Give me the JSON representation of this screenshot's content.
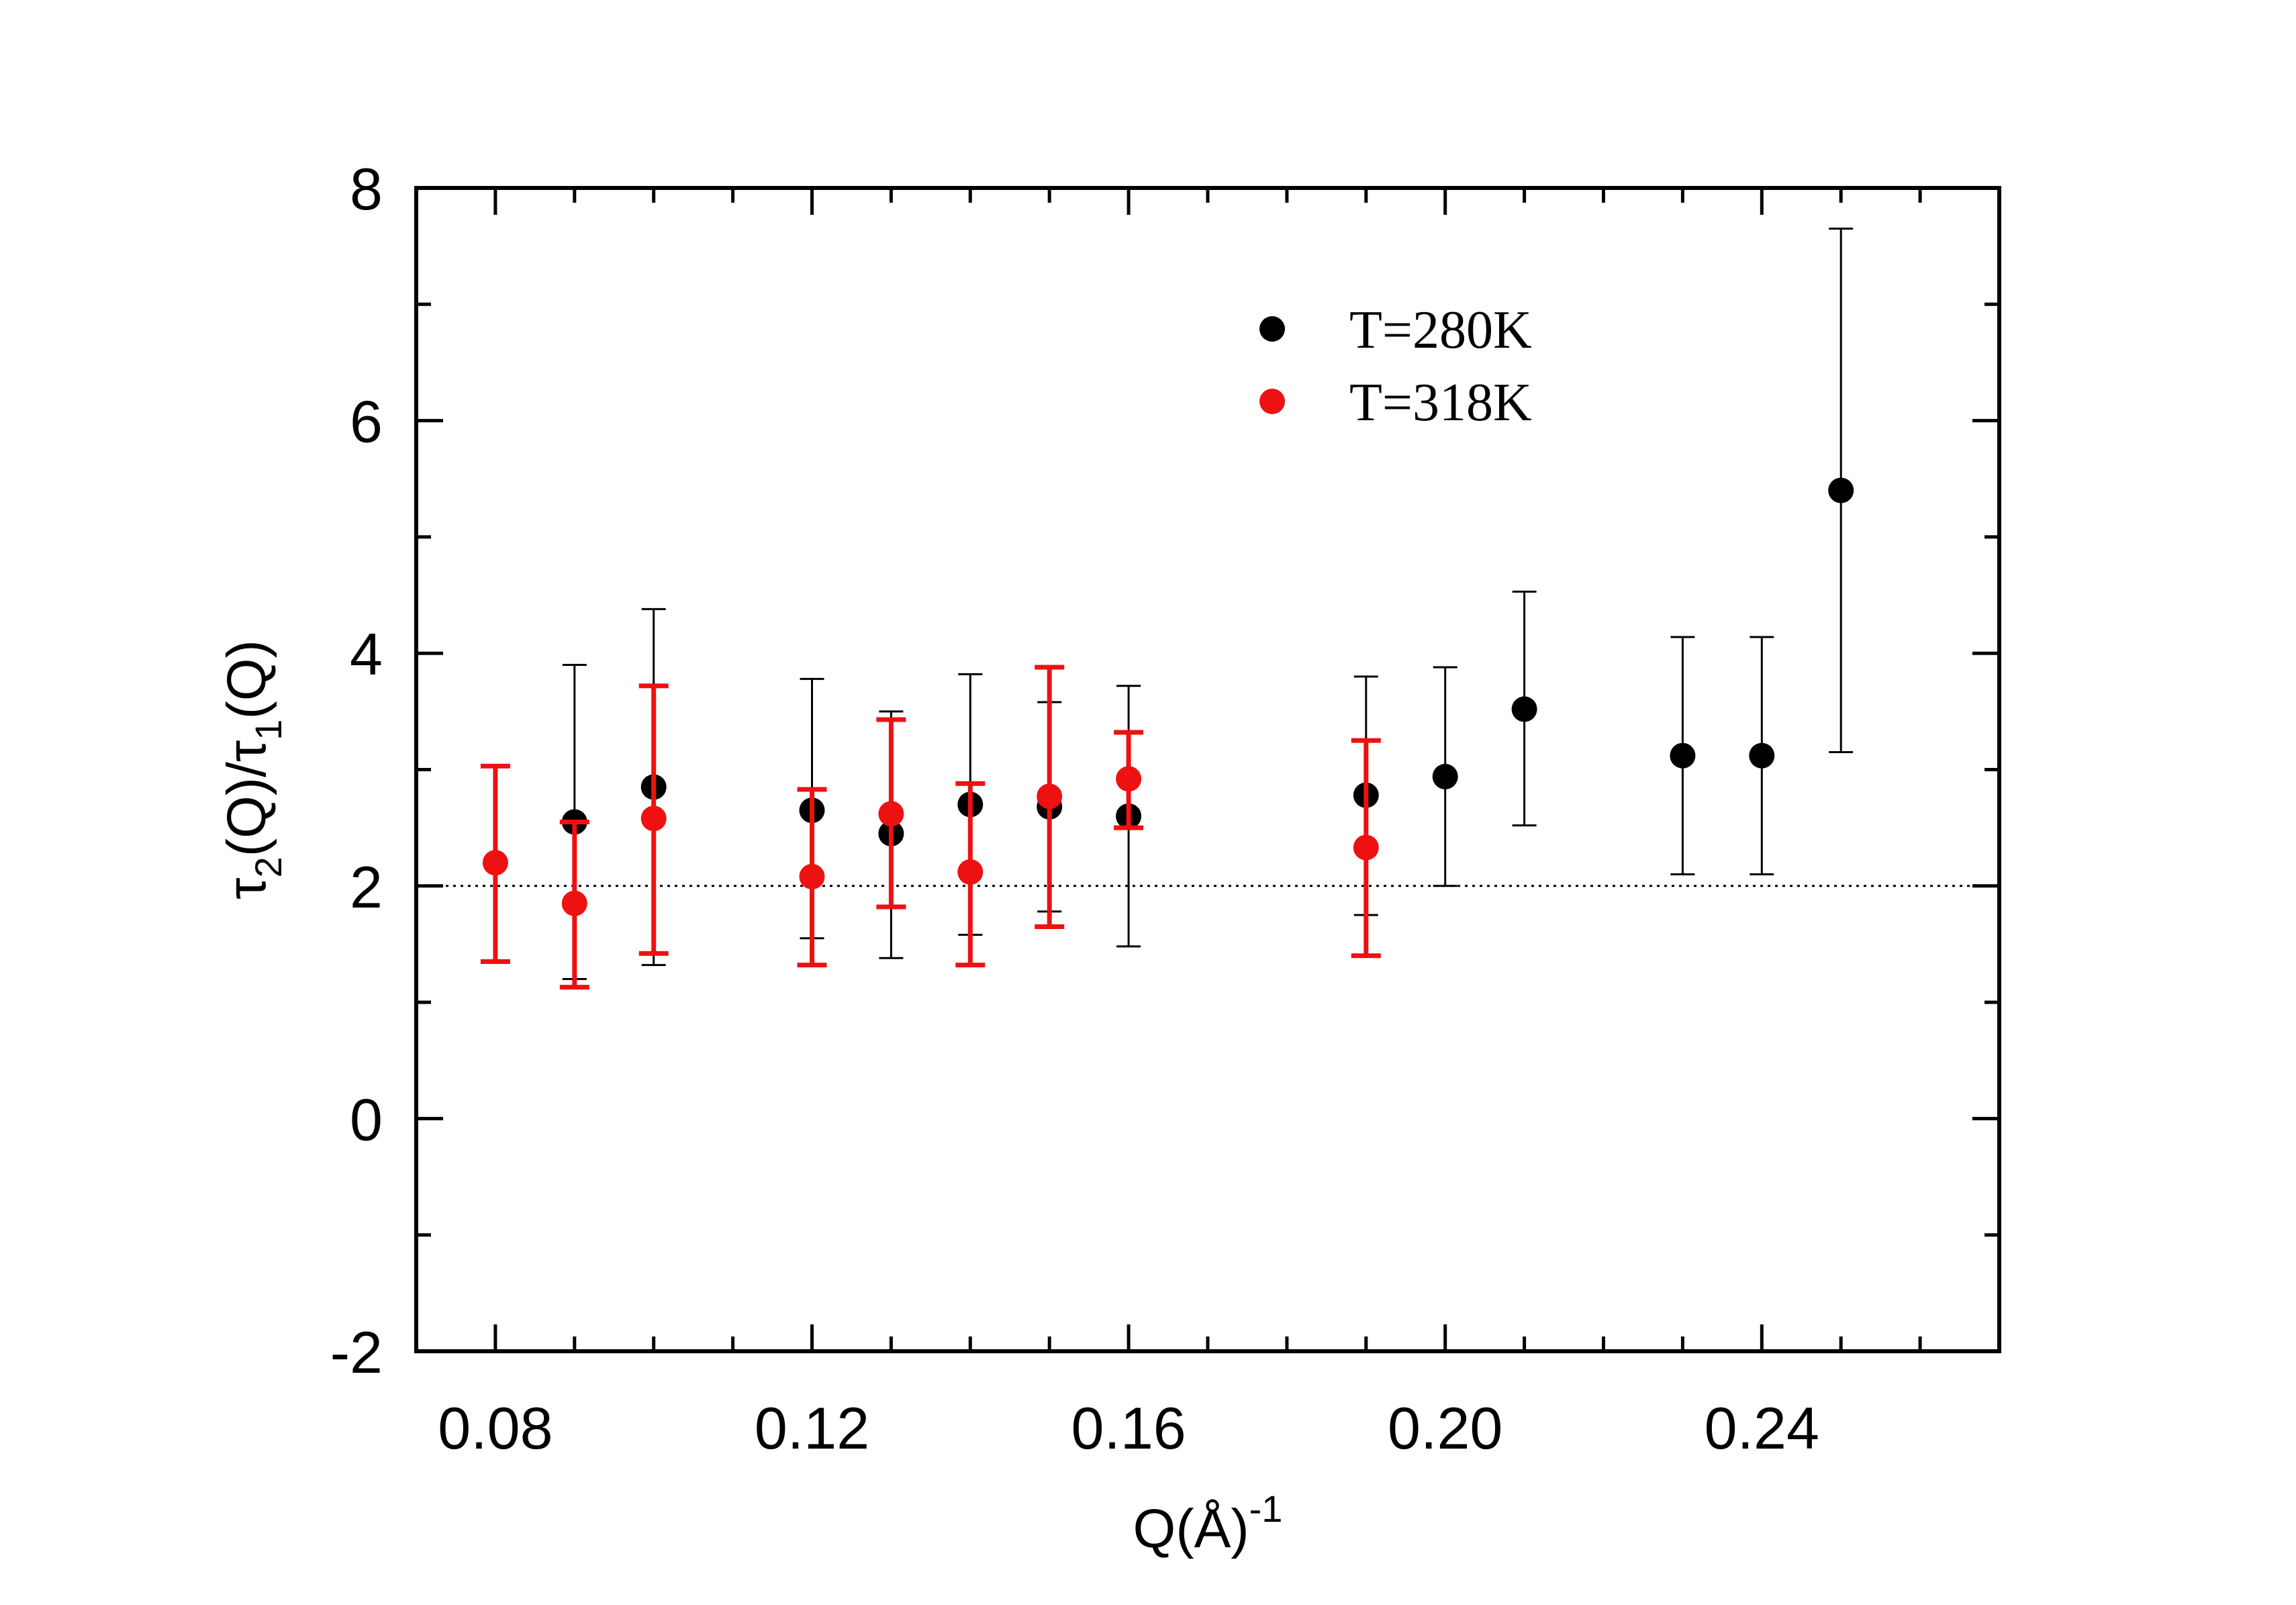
{
  "chart_data": {
    "type": "scatter",
    "title": "",
    "xlabel": "Q(Å)",
    "xlabel_superscript": "-1",
    "ylabel": {
      "tau": "τ",
      "sub1": "2",
      "mid": "(Q)/",
      "sub2": "1",
      "end": "(Q)"
    },
    "xlim": [
      0.07,
      0.27
    ],
    "ylim": [
      -2,
      8
    ],
    "xticks": [
      0.08,
      0.12,
      0.16,
      0.2,
      0.24
    ],
    "xtick_labels": [
      "0.08",
      "0.12",
      "0.16",
      "0.20",
      "0.24"
    ],
    "x_minor_step": 0.01,
    "yticks": [
      -2,
      0,
      2,
      4,
      6,
      8
    ],
    "ytick_labels": [
      "-2",
      "0",
      "2",
      "4",
      "6",
      "8"
    ],
    "y_minor_step": 1,
    "grid": false,
    "legend_position": "top-center",
    "reference_line": {
      "y": 2.0,
      "style": "dotted"
    },
    "series": [
      {
        "name": "T=280K",
        "color": "#000000",
        "points": [
          {
            "x": 0.09,
            "y": 2.55,
            "low": 1.2,
            "high": 3.9
          },
          {
            "x": 0.1,
            "y": 2.85,
            "low": 1.32,
            "high": 4.38
          },
          {
            "x": 0.12,
            "y": 2.65,
            "low": 1.55,
            "high": 3.78
          },
          {
            "x": 0.13,
            "y": 2.45,
            "low": 1.38,
            "high": 3.5
          },
          {
            "x": 0.14,
            "y": 2.7,
            "low": 1.58,
            "high": 3.82
          },
          {
            "x": 0.15,
            "y": 2.68,
            "low": 1.78,
            "high": 3.58
          },
          {
            "x": 0.16,
            "y": 2.6,
            "low": 1.48,
            "high": 3.72
          },
          {
            "x": 0.19,
            "y": 2.78,
            "low": 1.75,
            "high": 3.8
          },
          {
            "x": 0.2,
            "y": 2.94,
            "low": 2.0,
            "high": 3.88
          },
          {
            "x": 0.21,
            "y": 3.52,
            "low": 2.52,
            "high": 4.53
          },
          {
            "x": 0.23,
            "y": 3.12,
            "low": 2.1,
            "high": 4.14
          },
          {
            "x": 0.24,
            "y": 3.12,
            "low": 2.1,
            "high": 4.14
          },
          {
            "x": 0.25,
            "y": 5.4,
            "low": 3.15,
            "high": 7.65
          }
        ]
      },
      {
        "name": "T=318K",
        "color": "#ee1111",
        "points": [
          {
            "x": 0.08,
            "y": 2.2,
            "low": 1.35,
            "high": 3.03
          },
          {
            "x": 0.09,
            "y": 1.85,
            "low": 1.13,
            "high": 2.55
          },
          {
            "x": 0.1,
            "y": 2.58,
            "low": 1.42,
            "high": 3.72
          },
          {
            "x": 0.12,
            "y": 2.08,
            "low": 1.32,
            "high": 2.83
          },
          {
            "x": 0.13,
            "y": 2.62,
            "low": 1.82,
            "high": 3.43
          },
          {
            "x": 0.14,
            "y": 2.12,
            "low": 1.32,
            "high": 2.88
          },
          {
            "x": 0.15,
            "y": 2.77,
            "low": 1.65,
            "high": 3.88
          },
          {
            "x": 0.16,
            "y": 2.92,
            "low": 2.5,
            "high": 3.32
          },
          {
            "x": 0.19,
            "y": 2.33,
            "low": 1.4,
            "high": 3.25
          }
        ]
      }
    ]
  }
}
